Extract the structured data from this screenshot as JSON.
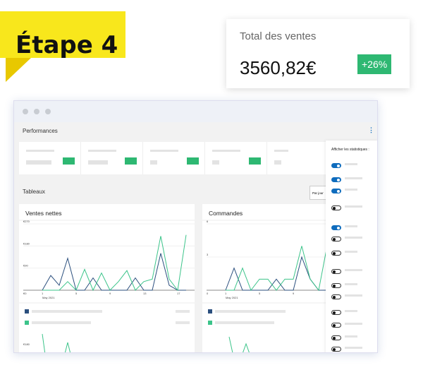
{
  "badge": {
    "label": "Étape 4"
  },
  "total": {
    "label": "Total des ventes",
    "value": "3560,82€",
    "change": "+26%"
  },
  "dashboard": {
    "section1": "Performances",
    "section2": "Tableaux",
    "period": "Par jour",
    "panel_title": "Afficher les statistiques :",
    "toggles": [
      true,
      true,
      true,
      false,
      true,
      false,
      false,
      false,
      false,
      false,
      false,
      false,
      false,
      false,
      false,
      false
    ],
    "colors": {
      "primary": "#2b4f7e",
      "secondary": "#3cc48a",
      "positive": "#2eb872",
      "toggle_on": "#0f6cbd"
    }
  },
  "chart_data": [
    {
      "type": "line",
      "title": "Ventes nettes",
      "xlabel": "May 2021",
      "x": [
        1,
        2,
        3,
        4,
        5,
        6,
        7,
        8,
        9,
        10,
        11,
        12,
        13,
        14,
        15,
        16,
        17,
        18
      ],
      "xticks": [
        "1",
        "5",
        "9",
        "13",
        "17"
      ],
      "yticks": [
        "€0",
        "€90",
        "€180",
        "€270"
      ],
      "ylim": [
        0,
        270
      ],
      "series": [
        {
          "values": [
            0,
            60,
            20,
            130,
            0,
            0,
            50,
            0,
            0,
            0,
            0,
            50,
            0,
            0,
            150,
            20,
            0,
            0
          ]
        },
        {
          "values": [
            0,
            0,
            0,
            35,
            0,
            85,
            0,
            70,
            0,
            35,
            80,
            0,
            35,
            45,
            220,
            45,
            0,
            225
          ]
        }
      ]
    },
    {
      "type": "line",
      "title": "Commandes",
      "xlabel": "May 2021",
      "x": [
        1,
        2,
        3,
        4,
        5,
        6,
        7,
        8,
        9,
        10,
        11,
        12,
        13
      ],
      "xticks": [
        "1",
        "5",
        "9"
      ],
      "yticks": [
        "0",
        "3",
        "6"
      ],
      "ylim": [
        0,
        6
      ],
      "series": [
        {
          "values": [
            0,
            2,
            0,
            0,
            0,
            0,
            1,
            0,
            0,
            3,
            1,
            0,
            0
          ]
        },
        {
          "values": [
            0,
            0,
            2,
            0,
            1,
            1,
            0,
            1,
            1,
            4,
            1,
            0,
            4
          ]
        }
      ]
    }
  ]
}
